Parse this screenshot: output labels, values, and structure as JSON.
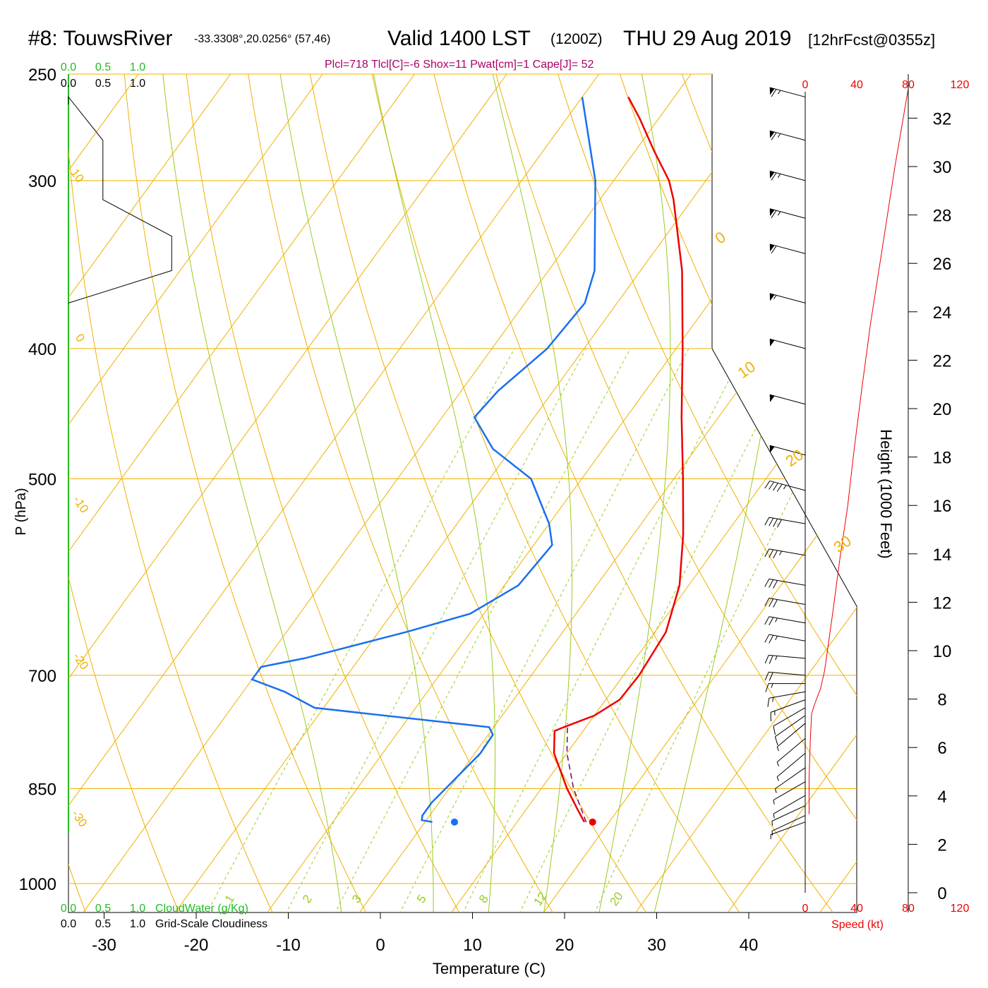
{
  "header": {
    "station": "#8: TouwsRiver",
    "coords": "-33.3308°,20.0256° (57,46)",
    "valid_main": "Valid 1400 LST",
    "valid_z": "(1200Z)",
    "valid_date": "THU 29 Aug 2019",
    "forecast": "[12hrFcst@0355z]",
    "indices": "Plcl=718 Tlcl[C]=-6 Shox=11 Pwat[cm]=1 Cape[J]= 52"
  },
  "colors": {
    "temperature": "#ee0000",
    "dewpoint": "#1a6ff0",
    "isotherm": "#f0b000",
    "mixing_ratio": "#99cc22",
    "parcel": "#770077",
    "cloudwater": "#22bb22",
    "speed": "#ee0000"
  },
  "chart_data": {
    "type": "line",
    "title": "Skew-T",
    "xlabel": "Temperature (C)",
    "ylabel": "P (hPa)",
    "y2label": "Height (1000 Feet)",
    "xticks": [
      "-30",
      "-20",
      "-10",
      "0",
      "10",
      "20",
      "30",
      "40"
    ],
    "pressure_ticks": [
      "250",
      "300",
      "400",
      "500",
      "700",
      "850",
      "1000"
    ],
    "height_ticks": [
      "0",
      "2",
      "4",
      "6",
      "8",
      "10",
      "12",
      "14",
      "16",
      "18",
      "20",
      "22",
      "24",
      "26",
      "28",
      "30",
      "32"
    ],
    "speed_ticks": [
      "0",
      "40",
      "80",
      "120"
    ],
    "speed_label": "Speed (kt)",
    "cloud_ticks": [
      "0.0",
      "0.5",
      "1.0"
    ],
    "cloudwater_label": "CloudWater (g/Kg)",
    "cloudiness_label": "Grid-Scale Cloudiness",
    "isotherm_labels": [
      "10",
      "0",
      "-10",
      "-20",
      "-30"
    ],
    "theta_labels": [
      "0",
      "10",
      "20",
      "30"
    ],
    "mixing_ratio_labels": [
      "1",
      "2",
      "3",
      "5",
      "8",
      "12",
      "20"
    ],
    "temperature_profile": [
      [
        900,
        17.3
      ],
      [
        880,
        15.5
      ],
      [
        850,
        12.8
      ],
      [
        800,
        8.6
      ],
      [
        770,
        6.9
      ],
      [
        765,
        7.6
      ],
      [
        750,
        10.0
      ],
      [
        730,
        11.5
      ],
      [
        700,
        11.7
      ],
      [
        650,
        11.2
      ],
      [
        600,
        9.0
      ],
      [
        550,
        5.4
      ],
      [
        500,
        1.0
      ],
      [
        450,
        -4.0
      ],
      [
        400,
        -9.3
      ],
      [
        350,
        -15.5
      ],
      [
        310,
        -22.0
      ],
      [
        300,
        -24.0
      ],
      [
        285,
        -28.0
      ],
      [
        270,
        -32.0
      ],
      [
        260,
        -35.0
      ]
    ],
    "dewpoint_profile": [
      [
        900,
        0.8
      ],
      [
        897,
        -0.5
      ],
      [
        890,
        -0.8
      ],
      [
        870,
        -0.8
      ],
      [
        850,
        -0.4
      ],
      [
        800,
        0.6
      ],
      [
        775,
        0.5
      ],
      [
        765,
        -0.5
      ],
      [
        740,
        -21.0
      ],
      [
        720,
        -25.5
      ],
      [
        705,
        -30.0
      ],
      [
        690,
        -30.0
      ],
      [
        680,
        -26.0
      ],
      [
        650,
        -17.0
      ],
      [
        630,
        -11.5
      ],
      [
        600,
        -8.5
      ],
      [
        560,
        -8.0
      ],
      [
        540,
        -10.0
      ],
      [
        500,
        -15.5
      ],
      [
        475,
        -22.0
      ],
      [
        450,
        -26.5
      ],
      [
        430,
        -26.0
      ],
      [
        400,
        -24.0
      ],
      [
        370,
        -23.5
      ],
      [
        350,
        -25.0
      ],
      [
        300,
        -32.0
      ],
      [
        260,
        -40.0
      ]
    ],
    "parcel_profile": [
      [
        900,
        17.5
      ],
      [
        850,
        13.5
      ],
      [
        800,
        10.0
      ],
      [
        760,
        7.7
      ]
    ],
    "surface_temperature": [
      900,
      18.2
    ],
    "surface_dewpoint": [
      900,
      3.2
    ],
    "wind_speed_profile": [
      [
        900,
        3
      ],
      [
        850,
        3
      ],
      [
        800,
        4
      ],
      [
        770,
        5
      ],
      [
        760,
        7
      ],
      [
        740,
        12
      ],
      [
        720,
        15
      ],
      [
        700,
        17
      ],
      [
        650,
        22
      ],
      [
        600,
        27
      ],
      [
        550,
        33
      ],
      [
        500,
        38
      ],
      [
        450,
        44
      ],
      [
        400,
        51
      ],
      [
        350,
        60
      ],
      [
        300,
        70
      ],
      [
        260,
        80
      ]
    ],
    "wind_barbs": [
      [
        260,
        65,
        255
      ],
      [
        280,
        65,
        255
      ],
      [
        300,
        65,
        255
      ],
      [
        320,
        65,
        255
      ],
      [
        340,
        60,
        255
      ],
      [
        370,
        55,
        255
      ],
      [
        400,
        50,
        255
      ],
      [
        440,
        50,
        255
      ],
      [
        480,
        50,
        255
      ],
      [
        510,
        45,
        255
      ],
      [
        540,
        40,
        260
      ],
      [
        570,
        35,
        260
      ],
      [
        600,
        30,
        260
      ],
      [
        620,
        30,
        260
      ],
      [
        640,
        25,
        260
      ],
      [
        660,
        25,
        260
      ],
      [
        680,
        25,
        265
      ],
      [
        700,
        20,
        265
      ],
      [
        710,
        15,
        270
      ],
      [
        720,
        15,
        280
      ],
      [
        730,
        15,
        290
      ],
      [
        740,
        10,
        300
      ],
      [
        750,
        10,
        305
      ],
      [
        760,
        5,
        310
      ],
      [
        780,
        5,
        310
      ],
      [
        800,
        5,
        310
      ],
      [
        820,
        5,
        305
      ],
      [
        840,
        5,
        300
      ],
      [
        860,
        5,
        300
      ],
      [
        875,
        5,
        295
      ],
      [
        890,
        5,
        295
      ],
      [
        900,
        5,
        290
      ]
    ],
    "cloudiness_profile": [
      [
        260,
        0
      ],
      [
        280,
        0.25
      ],
      [
        310,
        0.25
      ],
      [
        330,
        0.75
      ],
      [
        350,
        0.75
      ],
      [
        370,
        0
      ]
    ]
  }
}
